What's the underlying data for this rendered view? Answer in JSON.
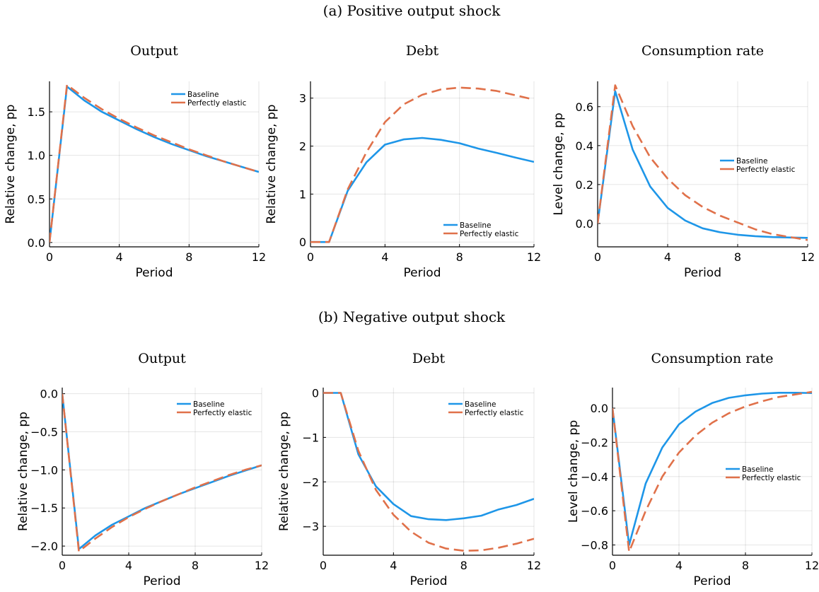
{
  "panels": [
    {
      "title": "(a) Positive output shock"
    },
    {
      "title": "(b) Negative output shock"
    }
  ],
  "colors": {
    "baseline": "#1e96e8",
    "elastic": "#e0714a"
  },
  "chart_data": [
    {
      "type": "line",
      "panel": 0,
      "title": "Output",
      "xlabel": "Period",
      "ylabel": "Relative change, pp",
      "xlim": [
        0,
        12
      ],
      "ylim": [
        -0.05,
        1.85
      ],
      "xticks": [
        0,
        4,
        8,
        12
      ],
      "yticks": [
        0.0,
        0.5,
        1.0,
        1.5
      ],
      "ytick_labels": [
        "0.0",
        "0.5",
        "1.0",
        "1.5"
      ],
      "grid": true,
      "legend": "top-right",
      "x": [
        0,
        1,
        2,
        3,
        4,
        5,
        6,
        7,
        8,
        9,
        10,
        11,
        12
      ],
      "series": [
        {
          "name": "Baseline",
          "style": "solid",
          "values": [
            0,
            1.79,
            1.63,
            1.5,
            1.4,
            1.3,
            1.21,
            1.13,
            1.06,
            0.99,
            0.93,
            0.87,
            0.81
          ]
        },
        {
          "name": "Perfectly elastic",
          "style": "dashed",
          "values": [
            0,
            1.81,
            1.66,
            1.53,
            1.42,
            1.32,
            1.23,
            1.15,
            1.07,
            1.0,
            0.93,
            0.87,
            0.81
          ]
        }
      ]
    },
    {
      "type": "line",
      "panel": 0,
      "title": "Debt",
      "xlabel": "Period",
      "ylabel": "Relative change, pp",
      "xlim": [
        0,
        12
      ],
      "ylim": [
        -0.1,
        3.35
      ],
      "xticks": [
        0,
        4,
        8,
        12
      ],
      "yticks": [
        0,
        1,
        2,
        3
      ],
      "ytick_labels": [
        "0",
        "1",
        "2",
        "3"
      ],
      "grid": true,
      "legend": "bottom-right",
      "x": [
        0,
        1,
        2,
        3,
        4,
        5,
        6,
        7,
        8,
        9,
        10,
        11,
        12
      ],
      "series": [
        {
          "name": "Baseline",
          "style": "solid",
          "values": [
            0,
            0,
            1.07,
            1.66,
            2.03,
            2.14,
            2.17,
            2.13,
            2.06,
            1.95,
            1.86,
            1.76,
            1.67
          ]
        },
        {
          "name": "Perfectly elastic",
          "style": "dashed",
          "values": [
            0,
            0,
            1.1,
            1.87,
            2.5,
            2.87,
            3.07,
            3.18,
            3.22,
            3.2,
            3.15,
            3.06,
            2.97
          ]
        }
      ]
    },
    {
      "type": "line",
      "panel": 0,
      "title": "Consumption rate",
      "xlabel": "Period",
      "ylabel": "Level change, pp",
      "xlim": [
        0,
        12
      ],
      "ylim": [
        -0.12,
        0.73
      ],
      "xticks": [
        0,
        4,
        8,
        12
      ],
      "yticks": [
        0.0,
        0.2,
        0.4,
        0.6
      ],
      "ytick_labels": [
        "0.0",
        "0.2",
        "0.4",
        "0.6"
      ],
      "grid": true,
      "legend": "center-right",
      "x": [
        0,
        1,
        2,
        3,
        4,
        5,
        6,
        7,
        8,
        9,
        10,
        11,
        12
      ],
      "series": [
        {
          "name": "Baseline",
          "style": "solid",
          "values": [
            0,
            0.68,
            0.38,
            0.19,
            0.08,
            0.015,
            -0.025,
            -0.045,
            -0.058,
            -0.065,
            -0.07,
            -0.072,
            -0.074
          ]
        },
        {
          "name": "Perfectly elastic",
          "style": "dashed",
          "values": [
            0,
            0.71,
            0.5,
            0.34,
            0.23,
            0.145,
            0.085,
            0.04,
            0.005,
            -0.03,
            -0.055,
            -0.07,
            -0.085
          ]
        }
      ]
    },
    {
      "type": "line",
      "panel": 1,
      "title": "Output",
      "xlabel": "Period",
      "ylabel": "Relative change, pp",
      "xlim": [
        0,
        12
      ],
      "ylim": [
        -2.12,
        0.08
      ],
      "xticks": [
        0,
        4,
        8,
        12
      ],
      "yticks": [
        0.0,
        -0.5,
        -1.0,
        -1.5,
        -2.0
      ],
      "ytick_labels": [
        "0.0",
        "−0.5",
        "−1.0",
        "−1.5",
        "−2.0"
      ],
      "grid": true,
      "legend": "top-right",
      "x": [
        0,
        1,
        2,
        3,
        4,
        5,
        6,
        7,
        8,
        9,
        10,
        11,
        12
      ],
      "series": [
        {
          "name": "Baseline",
          "style": "solid",
          "values": [
            0,
            -2.04,
            -1.86,
            -1.72,
            -1.61,
            -1.5,
            -1.41,
            -1.32,
            -1.24,
            -1.16,
            -1.08,
            -1.01,
            -0.94
          ]
        },
        {
          "name": "Perfectly elastic",
          "style": "dashed",
          "values": [
            0,
            -2.07,
            -1.9,
            -1.75,
            -1.62,
            -1.51,
            -1.41,
            -1.32,
            -1.23,
            -1.15,
            -1.07,
            -1.0,
            -0.94
          ]
        }
      ]
    },
    {
      "type": "line",
      "panel": 1,
      "title": "Debt",
      "xlabel": "Period",
      "ylabel": "Relative change, pp",
      "xlim": [
        0,
        12
      ],
      "ylim": [
        -3.65,
        0.12
      ],
      "xticks": [
        0,
        4,
        8,
        12
      ],
      "yticks": [
        0,
        -1,
        -2,
        -3
      ],
      "ytick_labels": [
        "0",
        "−1",
        "−2",
        "−3"
      ],
      "grid": true,
      "legend": "top-right",
      "x": [
        0,
        1,
        2,
        3,
        4,
        5,
        6,
        7,
        8,
        9,
        10,
        11,
        12
      ],
      "series": [
        {
          "name": "Baseline",
          "style": "solid",
          "values": [
            0,
            0,
            -1.38,
            -2.1,
            -2.5,
            -2.77,
            -2.84,
            -2.86,
            -2.82,
            -2.76,
            -2.62,
            -2.52,
            -2.38
          ]
        },
        {
          "name": "Perfectly elastic",
          "style": "dashed",
          "values": [
            0,
            0,
            -1.3,
            -2.18,
            -2.74,
            -3.12,
            -3.37,
            -3.5,
            -3.55,
            -3.54,
            -3.48,
            -3.39,
            -3.28
          ]
        }
      ]
    },
    {
      "type": "line",
      "panel": 1,
      "title": "Consumption rate",
      "xlabel": "Period",
      "ylabel": "Level change, pp",
      "xlim": [
        0,
        12
      ],
      "ylim": [
        -0.86,
        0.12
      ],
      "xticks": [
        0,
        4,
        8,
        12
      ],
      "yticks": [
        0.0,
        -0.2,
        -0.4,
        -0.6,
        -0.8
      ],
      "ytick_labels": [
        "0.0",
        "−0.2",
        "−0.4",
        "−0.6",
        "−0.8"
      ],
      "grid": true,
      "legend": "center-right",
      "x": [
        0,
        1,
        2,
        3,
        4,
        5,
        6,
        7,
        8,
        9,
        10,
        11,
        12
      ],
      "series": [
        {
          "name": "Baseline",
          "style": "solid",
          "values": [
            0,
            -0.8,
            -0.44,
            -0.23,
            -0.095,
            -0.02,
            0.03,
            0.06,
            0.075,
            0.085,
            0.09,
            0.09,
            0.088
          ]
        },
        {
          "name": "Perfectly elastic",
          "style": "dashed",
          "values": [
            0,
            -0.84,
            -0.6,
            -0.4,
            -0.26,
            -0.16,
            -0.085,
            -0.03,
            0.01,
            0.04,
            0.065,
            0.08,
            0.095
          ]
        }
      ]
    }
  ]
}
